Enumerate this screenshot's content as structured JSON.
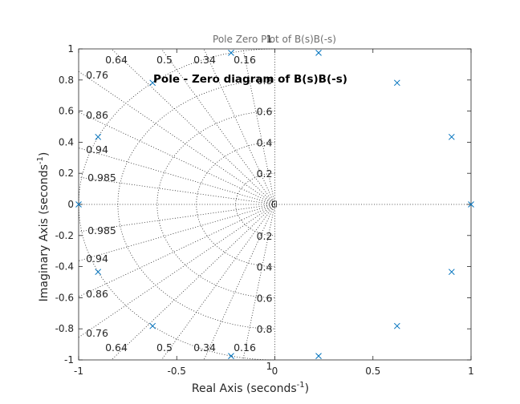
{
  "chart_data": {
    "type": "scatter",
    "title": "Pole Zero Plot of B(s)B(-s)",
    "annotation": "Pole - Zero diagram of B(s)B(-s)",
    "xlabel": "Real Axis (seconds",
    "xlabel_exp": "-1",
    "xlabel_close": ")",
    "ylabel": "Imaginary Axis (seconds",
    "ylabel_exp": "-1",
    "ylabel_close": ")",
    "xlim": [
      -1,
      1
    ],
    "ylim": [
      -1,
      1
    ],
    "xticks": [
      -1,
      -0.5,
      0,
      0.5,
      1
    ],
    "xtick_labels": [
      "-1",
      "-0.5",
      "0",
      "0.5",
      "1"
    ],
    "yticks": [
      -1,
      -0.8,
      -0.6,
      -0.4,
      -0.2,
      0,
      0.2,
      0.4,
      0.6,
      0.8,
      1
    ],
    "ytick_labels": [
      "-1",
      "-0.8",
      "-0.6",
      "-0.4",
      "-0.2",
      "0",
      "0.2",
      "0.4",
      "0.6",
      "0.8",
      "1"
    ],
    "grid": "s-plane damping/natural frequency grid (dotted)",
    "damping_ratios": [
      0.16,
      0.34,
      0.5,
      0.64,
      0.76,
      0.86,
      0.94,
      0.985
    ],
    "damping_labels": [
      "0.16",
      "0.34",
      "0.5",
      "0.64",
      "0.76",
      "0.86",
      "0.94",
      "0.985"
    ],
    "natural_frequencies": [
      0.2,
      0.4,
      0.6,
      0.8,
      1.0
    ],
    "natural_frequency_labels": [
      "0.2",
      "0.4",
      "0.6",
      "0.8",
      "1"
    ],
    "poles_marker": "x",
    "marker_color": "#0072bd",
    "poles": [
      {
        "re": -1.0,
        "im": 0.0
      },
      {
        "re": -0.901,
        "im": 0.434
      },
      {
        "re": -0.901,
        "im": -0.434
      },
      {
        "re": -0.623,
        "im": 0.782
      },
      {
        "re": -0.623,
        "im": -0.782
      },
      {
        "re": -0.223,
        "im": 0.975
      },
      {
        "re": -0.223,
        "im": -0.975
      },
      {
        "re": 1.0,
        "im": 0.0
      },
      {
        "re": 0.901,
        "im": 0.434
      },
      {
        "re": 0.901,
        "im": -0.434
      },
      {
        "re": 0.623,
        "im": 0.782
      },
      {
        "re": 0.623,
        "im": -0.782
      },
      {
        "re": 0.223,
        "im": 0.975
      },
      {
        "re": 0.223,
        "im": -0.975
      }
    ]
  }
}
